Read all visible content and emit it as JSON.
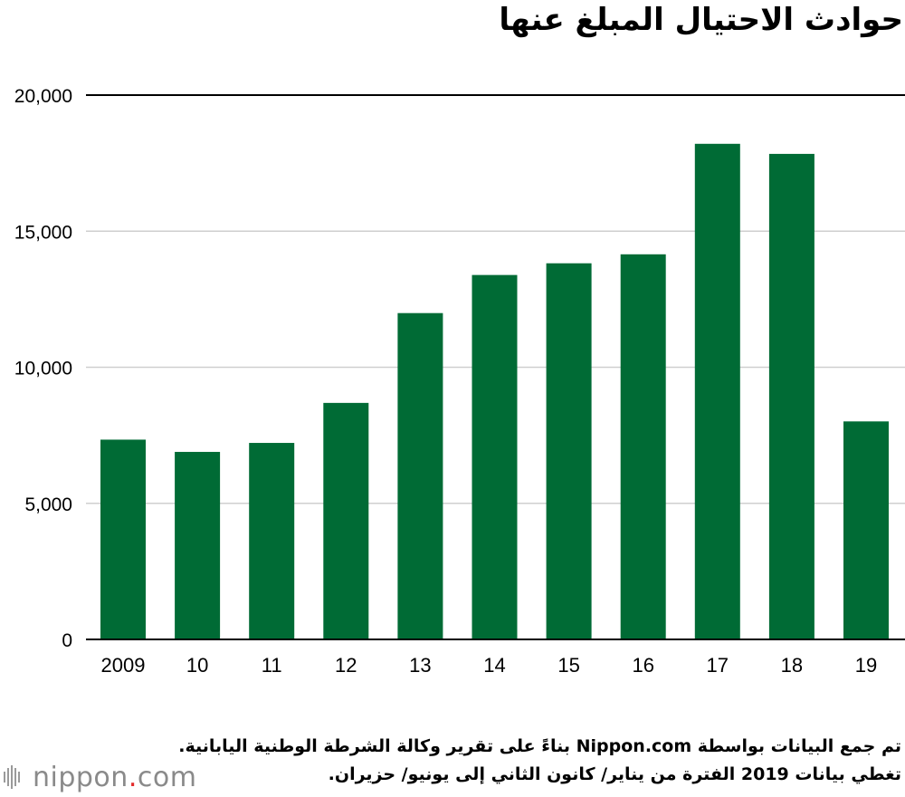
{
  "chart_data": {
    "type": "bar",
    "title": "حوادث الاحتيال المبلغ عنها",
    "categories": [
      "2009",
      "10",
      "11",
      "12",
      "13",
      "14",
      "15",
      "16",
      "17",
      "18",
      "19"
    ],
    "series": [
      {
        "values": [
          7340,
          6890,
          7220,
          8690,
          11990,
          13390,
          13820,
          14150,
          18210,
          17840,
          8010
        ]
      }
    ],
    "ylim": [
      0,
      20000
    ],
    "yticks": [
      0,
      5000,
      10000,
      15000,
      20000
    ],
    "ytick_labels": [
      "0",
      "5,000",
      "10,000",
      "15,000",
      "20,000"
    ],
    "grid": true,
    "bar_color": "#006b35",
    "xlabel": "",
    "ylabel": ""
  },
  "footer": {
    "note_line1": "تم جمع البيانات بواسطة Nippon.com بناءً على تقرير وكالة الشرطة الوطنية اليابانية.",
    "note_line2": "تغطي بيانات 2019 الفترة من يناير/ كانون الثاني إلى يونيو/ حزيران."
  },
  "logo": {
    "word": "nippon",
    "dot": ".",
    "suffix": "com",
    "icon": "nippon-logo-icon",
    "dot_color": "#e32a2a"
  }
}
